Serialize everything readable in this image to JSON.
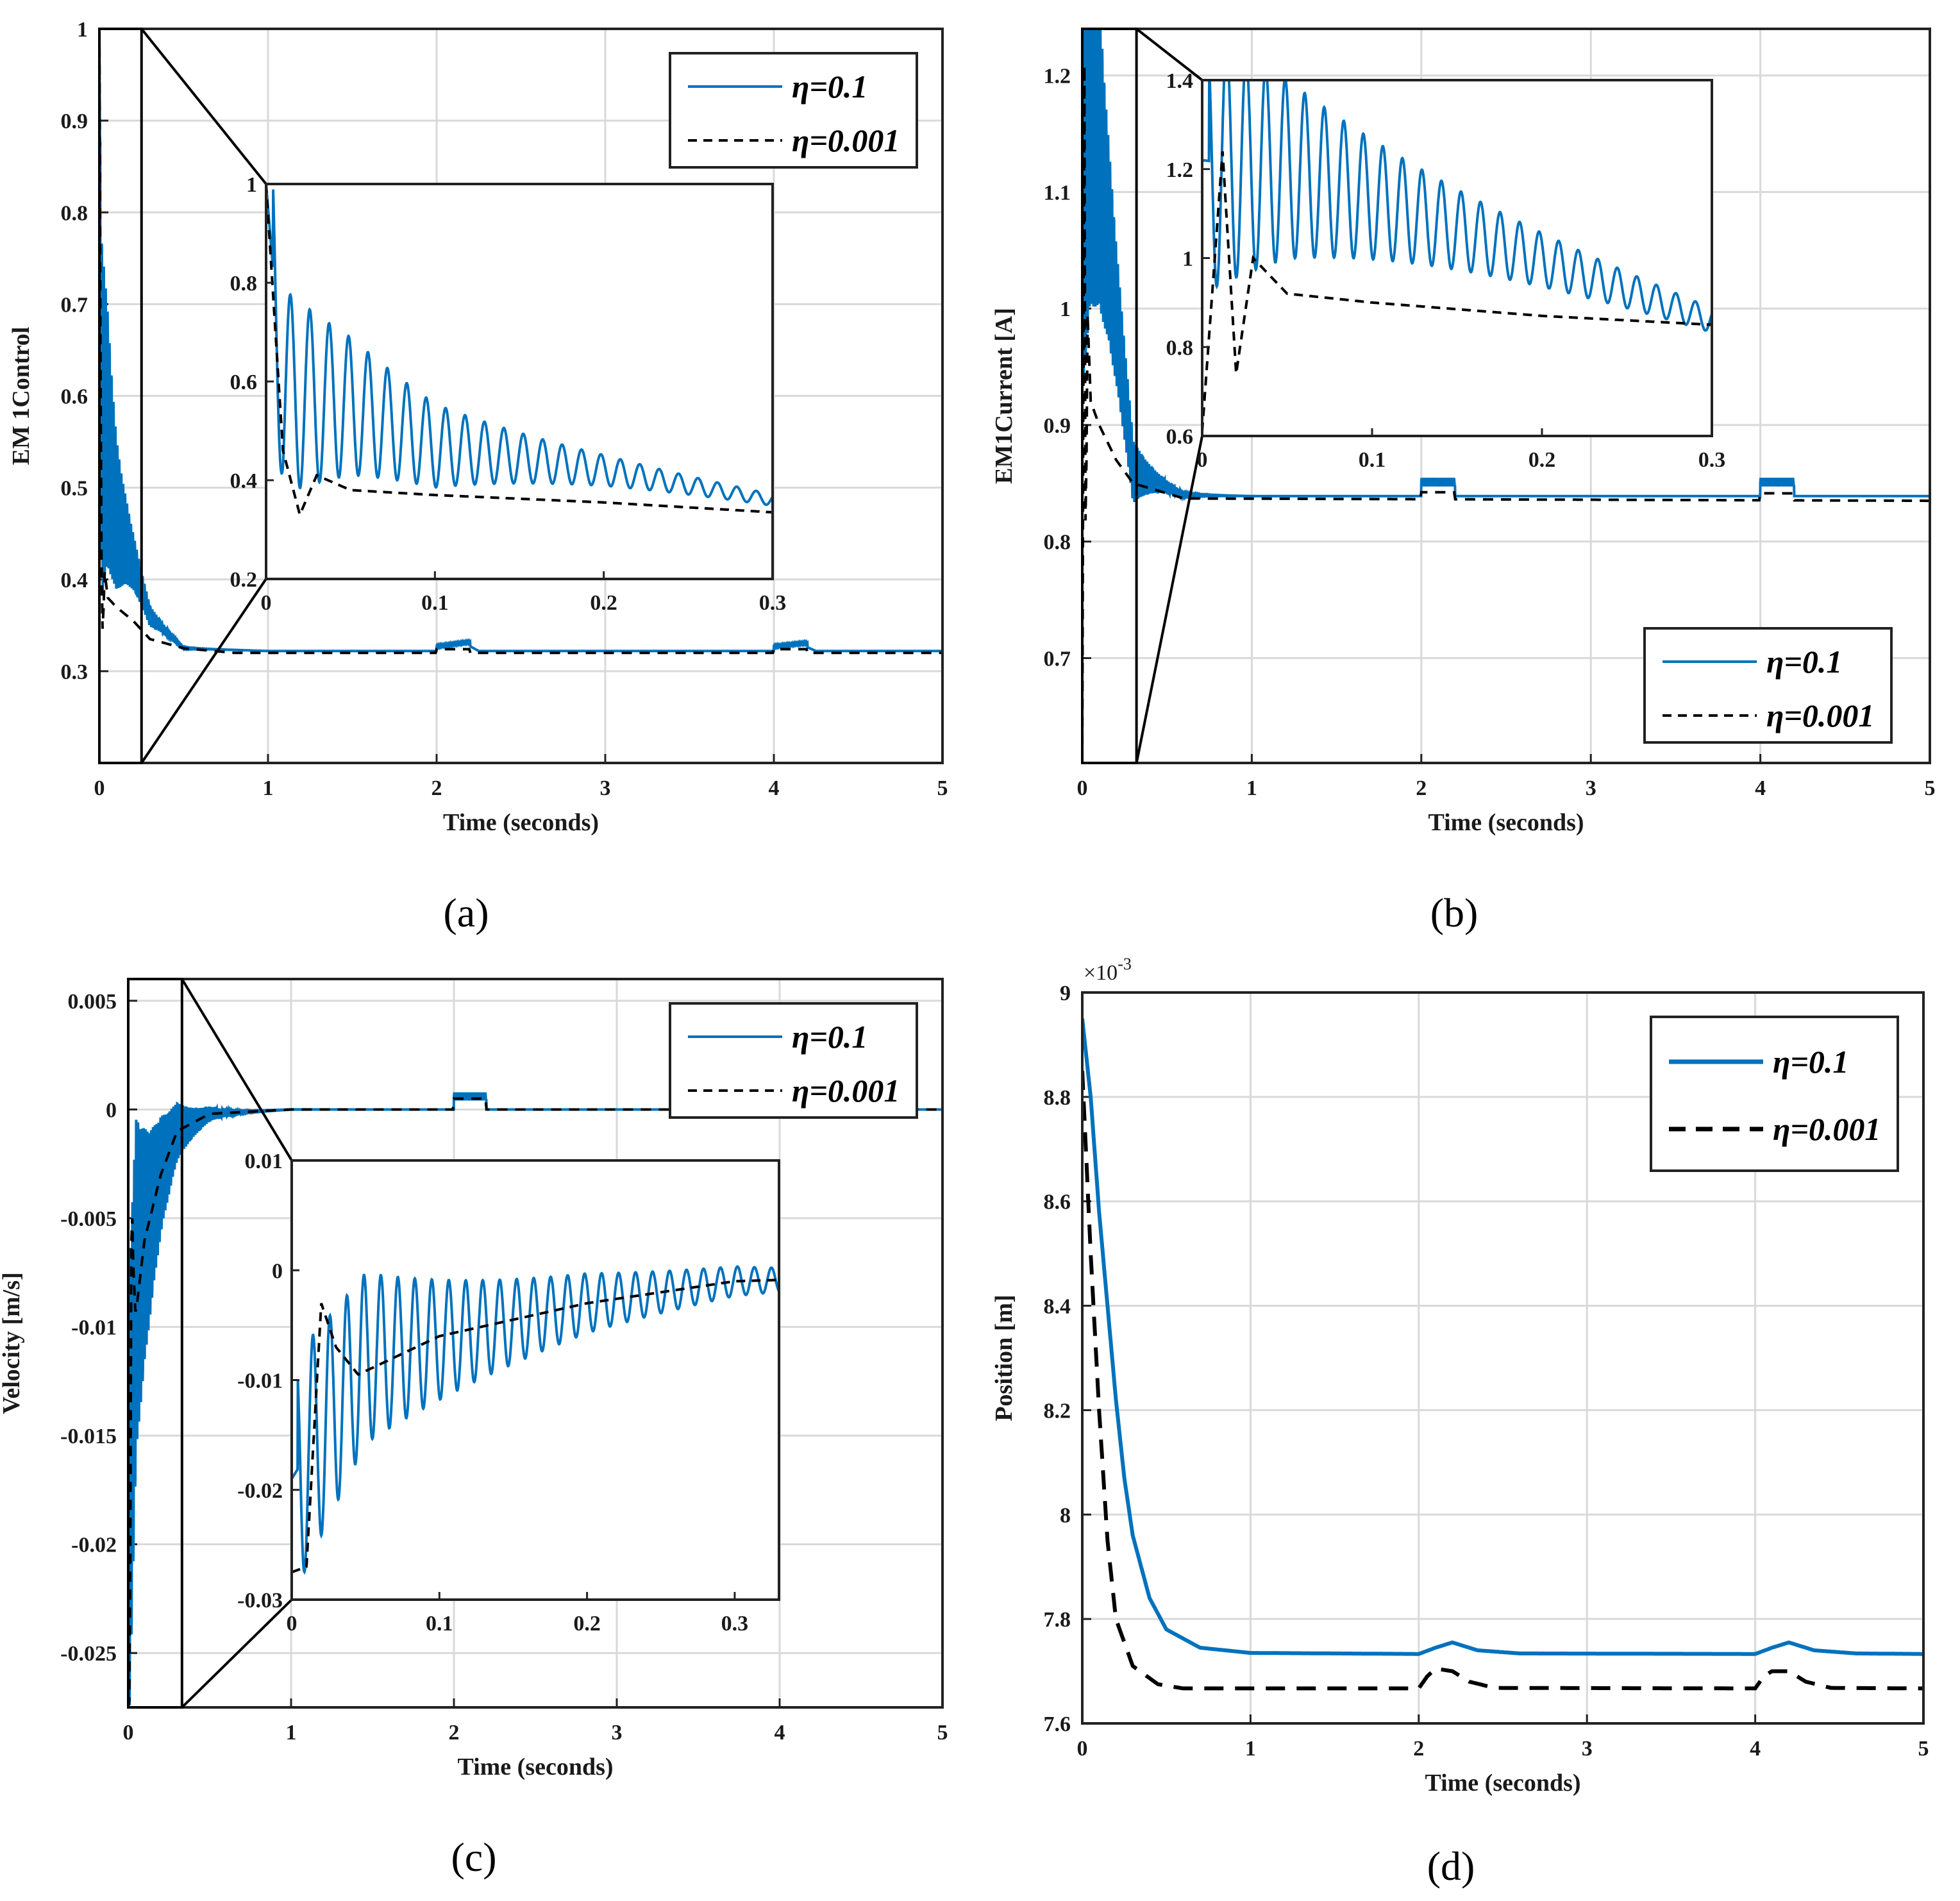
{
  "colors": {
    "series_a": "#0072BD",
    "series_b": "#000000",
    "grid": "#d9d9d9",
    "axes": "#222222"
  },
  "chart_data": [
    {
      "type": "line",
      "caption": "(a)",
      "xlabel": "Time (seconds)",
      "ylabel": "EM 1Control",
      "xlim": [
        0,
        5
      ],
      "ylim": [
        0.2,
        1.0
      ],
      "xticks": [
        0,
        1,
        2,
        3,
        4,
        5
      ],
      "xtick_labels": [
        "0",
        "1",
        "2",
        "3",
        "4",
        "5"
      ],
      "yticks": [
        0.3,
        0.4,
        0.5,
        0.6,
        0.7,
        0.8,
        0.9,
        1.0
      ],
      "ytick_labels": [
        "0.3",
        "0.4",
        "0.5",
        "0.6",
        "0.7",
        "0.8",
        "0.9",
        "1"
      ],
      "legend": {
        "position": "top-right",
        "entries": [
          "η=0.1",
          "η=0.001"
        ]
      },
      "series": [
        {
          "name": "η=0.1",
          "style": "solid",
          "period": 0.0115,
          "kind": "osc",
          "peak": 1.0,
          "base": 0.35,
          "amp0": 0.23,
          "decay": 10,
          "events": [
            [
              2.0,
              2.2,
              0.005
            ],
            [
              4.0,
              4.2,
              0.005
            ]
          ],
          "final": 0.322,
          "points": [
            [
              0,
              1.0
            ],
            [
              0.01,
              0.58
            ],
            [
              0.05,
              0.55
            ],
            [
              0.1,
              0.47
            ],
            [
              0.2,
              0.42
            ],
            [
              0.3,
              0.36
            ],
            [
              0.5,
              0.325
            ],
            [
              1.0,
              0.322
            ],
            [
              2.0,
              0.322
            ],
            [
              2.2,
              0.327
            ],
            [
              2.25,
              0.322
            ],
            [
              4.0,
              0.322
            ],
            [
              4.2,
              0.326
            ],
            [
              4.25,
              0.322
            ],
            [
              5.0,
              0.322
            ]
          ]
        },
        {
          "name": "η=0.001",
          "style": "dashed",
          "kind": "smooth",
          "events": [
            [
              2.0,
              2.2,
              0.004
            ],
            [
              4.0,
              4.2,
              0.004
            ]
          ],
          "final": 0.32,
          "points": [
            [
              0,
              1.0
            ],
            [
              0.01,
              0.46
            ],
            [
              0.02,
              0.33
            ],
            [
              0.03,
              0.41
            ],
            [
              0.05,
              0.38
            ],
            [
              0.1,
              0.37
            ],
            [
              0.2,
              0.355
            ],
            [
              0.3,
              0.335
            ],
            [
              0.5,
              0.325
            ],
            [
              0.8,
              0.32
            ],
            [
              5.0,
              0.32
            ]
          ]
        }
      ],
      "inset": {
        "xlim": [
          0,
          0.3
        ],
        "ylim": [
          0.2,
          1.0
        ],
        "xticks": [
          0,
          0.1,
          0.2,
          0.3
        ],
        "xtick_labels": [
          "0",
          "0.1",
          "0.2",
          "0.3"
        ],
        "yticks": [
          0.2,
          0.4,
          0.6,
          0.8,
          1.0
        ],
        "ytick_labels": [
          "0.2",
          "0.4",
          "0.6",
          "0.8",
          "1"
        ],
        "zoom_region": {
          "x": [
            0,
            0.25
          ],
          "y": [
            0.2,
            1.0
          ]
        }
      }
    },
    {
      "type": "line",
      "caption": "(b)",
      "xlabel": "Time (seconds)",
      "ylabel": "EM1Current [A]",
      "xlim": [
        0,
        5
      ],
      "ylim": [
        0.61,
        1.24
      ],
      "xticks": [
        0,
        1,
        2,
        3,
        4,
        5
      ],
      "xtick_labels": [
        "0",
        "1",
        "2",
        "3",
        "4",
        "5"
      ],
      "yticks": [
        0.7,
        0.8,
        0.9,
        1.0,
        1.1,
        1.2
      ],
      "ytick_labels": [
        "0.7",
        "0.8",
        "0.9",
        "1",
        "1.1",
        "1.2"
      ],
      "legend": {
        "position": "bottom-right",
        "entries": [
          "η=0.1",
          "η=0.001"
        ]
      },
      "series": [
        {
          "name": "η=0.1",
          "style": "solid",
          "period": 0.0115,
          "kind": "osc",
          "peak": 1.22,
          "base": 0.87,
          "amp0": 0.3,
          "decay": 8,
          "events": [
            [
              2.0,
              2.2,
              0.012
            ],
            [
              4.0,
              4.2,
              0.012
            ]
          ],
          "final": 0.839,
          "points": [
            [
              0,
              1.22
            ],
            [
              0.05,
              1.2
            ],
            [
              0.3,
              0.86
            ],
            [
              0.6,
              0.84
            ],
            [
              1.0,
              0.839
            ],
            [
              5.0,
              0.839
            ]
          ]
        },
        {
          "name": "η=0.001",
          "style": "dashed",
          "kind": "smooth",
          "events": [
            [
              2.0,
              2.2,
              0.006
            ],
            [
              4.0,
              4.2,
              0.006
            ]
          ],
          "final": 0.835,
          "points": [
            [
              0,
              0.61
            ],
            [
              0.012,
              1.24
            ],
            [
              0.02,
              0.74
            ],
            [
              0.03,
              1.0
            ],
            [
              0.05,
              0.92
            ],
            [
              0.1,
              0.9
            ],
            [
              0.2,
              0.87
            ],
            [
              0.3,
              0.85
            ],
            [
              0.6,
              0.837
            ],
            [
              5.0,
              0.835
            ]
          ]
        }
      ],
      "inset": {
        "xlim": [
          0,
          0.3
        ],
        "ylim": [
          0.6,
          1.4
        ],
        "xticks": [
          0,
          0.1,
          0.2,
          0.3
        ],
        "xtick_labels": [
          "0",
          "0.1",
          "0.2",
          "0.3"
        ],
        "yticks": [
          0.6,
          0.8,
          1.0,
          1.2,
          1.4
        ],
        "ytick_labels": [
          "0.6",
          "0.8",
          "1",
          "1.2",
          "1.4"
        ],
        "zoom_region": {
          "x": [
            0,
            0.32
          ],
          "y": [
            0.61,
            1.24
          ]
        }
      }
    },
    {
      "type": "line",
      "caption": "(c)",
      "xlabel": "Time (seconds)",
      "ylabel": "Velocity [m/s]",
      "xlim": [
        0,
        5
      ],
      "ylim": [
        -0.0275,
        0.006
      ],
      "xticks": [
        0,
        1,
        2,
        3,
        4,
        5
      ],
      "xtick_labels": [
        "0",
        "1",
        "2",
        "3",
        "4",
        "5"
      ],
      "yticks": [
        0.005,
        0,
        -0.005,
        -0.01,
        -0.015,
        -0.02,
        -0.025
      ],
      "ytick_labels": [
        "0.005",
        "0",
        "-0.005",
        "-0.01",
        "-0.015",
        "-0.02",
        "-0.025"
      ],
      "legend": {
        "position": "top-right",
        "entries": [
          "η=0.1",
          "η=0.001"
        ]
      },
      "series": [
        {
          "name": "η=0.1",
          "style": "solid",
          "period": 0.0115,
          "kind": "osc",
          "peak": -0.019,
          "base": -0.006,
          "amp0": 0.011,
          "decay": 7,
          "events": [
            [
              2.0,
              2.2,
              0.0006
            ],
            [
              4.0,
              4.2,
              0.0006
            ]
          ],
          "final": 0.0,
          "points": [
            [
              0,
              -0.019
            ],
            [
              0.05,
              -0.008
            ],
            [
              0.2,
              -0.003
            ],
            [
              0.3,
              -0.001
            ],
            [
              0.5,
              -0.0002
            ],
            [
              1.0,
              0.0
            ],
            [
              5.0,
              0.0
            ]
          ]
        },
        {
          "name": "η=0.001",
          "style": "dashed",
          "kind": "smooth",
          "events": [
            [
              2.0,
              2.2,
              0.0005
            ],
            [
              4.0,
              4.2,
              0.0005
            ]
          ],
          "final": 0.0,
          "points": [
            [
              0,
              -0.0275
            ],
            [
              0.01,
              -0.027
            ],
            [
              0.02,
              -0.003
            ],
            [
              0.03,
              -0.007
            ],
            [
              0.045,
              -0.0095
            ],
            [
              0.1,
              -0.006
            ],
            [
              0.2,
              -0.003
            ],
            [
              0.3,
              -0.001
            ],
            [
              0.5,
              -0.0002
            ],
            [
              1.0,
              0.0
            ],
            [
              5.0,
              0.0
            ]
          ]
        }
      ],
      "inset": {
        "xlim": [
          0,
          0.33
        ],
        "ylim": [
          -0.03,
          0.01
        ],
        "xticks": [
          0,
          0.1,
          0.2,
          0.3
        ],
        "xtick_labels": [
          "0",
          "0.1",
          "0.2",
          "0.3"
        ],
        "yticks": [
          0.01,
          0,
          -0.01,
          -0.02,
          -0.03
        ],
        "ytick_labels": [
          "0.01",
          "0",
          "-0.01",
          "-0.02",
          "-0.03"
        ],
        "zoom_region": {
          "x": [
            0,
            0.33
          ],
          "y": [
            -0.0275,
            0.006
          ]
        }
      }
    },
    {
      "type": "line",
      "caption": "(d)",
      "xlabel": "Time (seconds)",
      "ylabel": "Position [m]",
      "exponent_label": "×10",
      "exponent_power": "-3",
      "xlim": [
        0,
        5
      ],
      "ylim": [
        7.6,
        9.0
      ],
      "xticks": [
        0,
        1,
        2,
        3,
        4,
        5
      ],
      "xtick_labels": [
        "0",
        "1",
        "2",
        "3",
        "4",
        "5"
      ],
      "yticks": [
        7.6,
        7.8,
        8.0,
        8.2,
        8.4,
        8.6,
        8.8,
        9.0
      ],
      "ytick_labels": [
        "7.6",
        "7.8",
        "8",
        "8.2",
        "8.4",
        "8.6",
        "8.8",
        "9"
      ],
      "legend": {
        "position": "top-right",
        "entries": [
          "η=0.1",
          "η=0.001"
        ]
      },
      "series": [
        {
          "name": "η=0.1",
          "style": "solid",
          "kind": "smooth",
          "points": [
            [
              0,
              8.95
            ],
            [
              0.05,
              8.8
            ],
            [
              0.1,
              8.58
            ],
            [
              0.15,
              8.4
            ],
            [
              0.2,
              8.22
            ],
            [
              0.25,
              8.07
            ],
            [
              0.3,
              7.96
            ],
            [
              0.4,
              7.84
            ],
            [
              0.5,
              7.78
            ],
            [
              0.7,
              7.745
            ],
            [
              1.0,
              7.735
            ],
            [
              2.0,
              7.733
            ],
            [
              2.1,
              7.745
            ],
            [
              2.2,
              7.755
            ],
            [
              2.35,
              7.74
            ],
            [
              2.6,
              7.734
            ],
            [
              4.0,
              7.733
            ],
            [
              4.1,
              7.745
            ],
            [
              4.2,
              7.755
            ],
            [
              4.35,
              7.74
            ],
            [
              4.6,
              7.734
            ],
            [
              5.0,
              7.733
            ]
          ]
        },
        {
          "name": "η=0.001",
          "style": "dashed",
          "kind": "smooth",
          "points": [
            [
              0,
              8.85
            ],
            [
              0.05,
              8.5
            ],
            [
              0.1,
              8.2
            ],
            [
              0.15,
              7.95
            ],
            [
              0.2,
              7.8
            ],
            [
              0.3,
              7.71
            ],
            [
              0.45,
              7.675
            ],
            [
              0.6,
              7.667
            ],
            [
              2.0,
              7.667
            ],
            [
              2.05,
              7.69
            ],
            [
              2.1,
              7.705
            ],
            [
              2.2,
              7.7
            ],
            [
              2.3,
              7.68
            ],
            [
              2.45,
              7.668
            ],
            [
              4.0,
              7.667
            ],
            [
              4.05,
              7.69
            ],
            [
              4.1,
              7.7
            ],
            [
              4.2,
              7.7
            ],
            [
              4.3,
              7.68
            ],
            [
              4.45,
              7.668
            ],
            [
              5.0,
              7.667
            ]
          ]
        }
      ]
    }
  ]
}
